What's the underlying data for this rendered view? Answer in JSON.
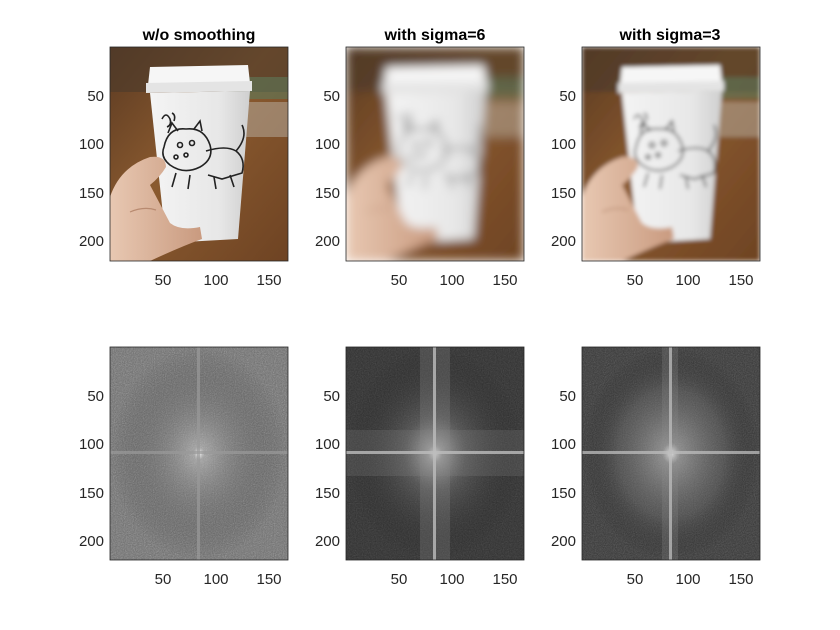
{
  "panels": [
    {
      "title": "w/o smoothing",
      "kind": "photo",
      "blur": 0
    },
    {
      "title": "with sigma=6",
      "kind": "photo",
      "blur": 6
    },
    {
      "title": "with sigma=3",
      "kind": "photo",
      "blur": 3
    },
    {
      "title": "",
      "kind": "spectrum",
      "variant": "noisy"
    },
    {
      "title": "",
      "kind": "spectrum",
      "variant": "strong"
    },
    {
      "title": "",
      "kind": "spectrum",
      "variant": "medium"
    }
  ],
  "axes": {
    "x_ticks": [
      "50",
      "100",
      "150"
    ],
    "y_ticks": [
      "50",
      "100",
      "150",
      "200"
    ]
  },
  "colors": {
    "wood": "#7a4a26",
    "cup": "#eeeeee",
    "skin": "#d9b59e",
    "spectrum_bg_noisy": "#6b6b6b",
    "spectrum_bg_dark": "#2e2e2e"
  }
}
